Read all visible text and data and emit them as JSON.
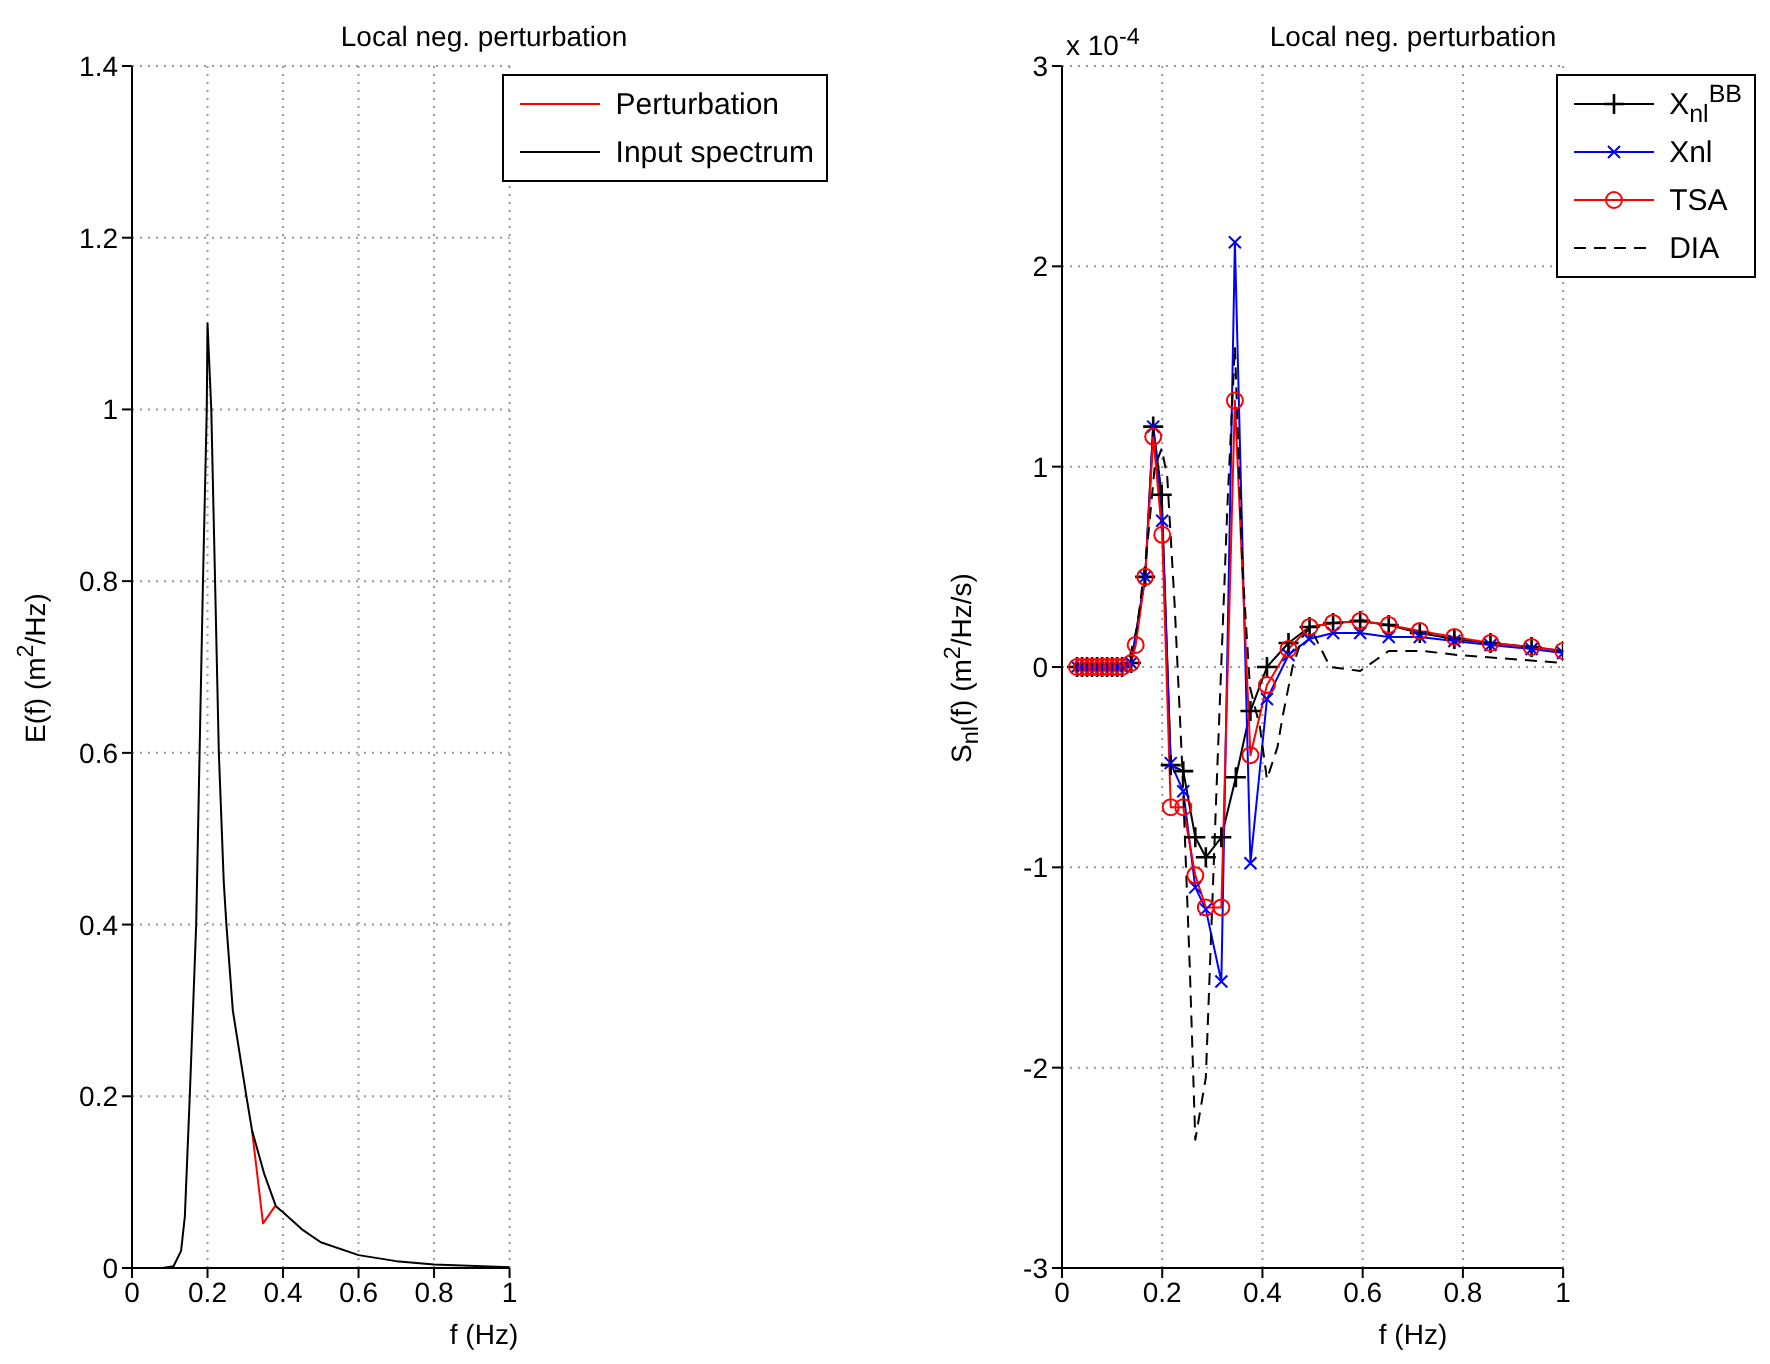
{
  "chart_data": [
    {
      "type": "line",
      "title": "Local neg. perturbation",
      "xlabel": "f (Hz)",
      "ylabel": "E(f) (m$^{2}$/Hz)",
      "xlim": [
        0,
        1
      ],
      "xticks": [
        0,
        0.2,
        0.4,
        0.6,
        0.8,
        1
      ],
      "ylim": [
        0,
        1.4
      ],
      "yticks": [
        0,
        0.2,
        0.4,
        0.6,
        0.8,
        1,
        1.2,
        1.4
      ],
      "grid": true,
      "legend": "top right",
      "series": [
        {
          "name": "Perturbation",
          "color": "#ff0000",
          "x": [
            0.318,
            0.347,
            0.379
          ],
          "values": [
            0.16,
            0.052,
            0.072
          ]
        },
        {
          "name": "Input spectrum",
          "color": "#000000",
          "x": [
            0,
            0.08,
            0.11,
            0.13,
            0.14,
            0.153,
            0.17,
            0.179,
            0.188,
            0.198,
            0.2,
            0.21,
            0.22,
            0.23,
            0.243,
            0.25,
            0.267,
            0.303,
            0.318,
            0.35,
            0.381,
            0.4,
            0.45,
            0.5,
            0.6,
            0.7,
            0.8,
            1
          ],
          "values": [
            0,
            0,
            0.002,
            0.02,
            0.06,
            0.2,
            0.4,
            0.6,
            0.8,
            1.0,
            1.1,
            1.0,
            0.8,
            0.6,
            0.45,
            0.4,
            0.3,
            0.2,
            0.16,
            0.11,
            0.072,
            0.065,
            0.045,
            0.03,
            0.015,
            0.008,
            0.004,
            0.001
          ]
        }
      ]
    },
    {
      "type": "line",
      "title": "Local neg. perturbation",
      "xlabel": "f (Hz)",
      "ylabel": "S$_{nl}$(f) (m$^{2}$/Hz/s)",
      "annotations": [
        "x 10$^{-4}$"
      ],
      "xlim": [
        0,
        1
      ],
      "xticks": [
        0,
        0.2,
        0.4,
        0.6,
        0.8,
        1
      ],
      "ylim": [
        -3,
        3
      ],
      "yticks": [
        -3,
        -2,
        -1,
        0,
        1,
        2,
        3
      ],
      "grid": true,
      "legend": "top right",
      "series": [
        {
          "name": "X$_{nl}$$^{BB}$",
          "color": "#000000",
          "marker": "plus",
          "x": [
            0.03,
            0.04,
            0.05,
            0.06,
            0.07,
            0.08,
            0.09,
            0.1,
            0.11,
            0.12,
            0.138,
            0.166,
            0.182,
            0.199,
            0.217,
            0.242,
            0.266,
            0.287,
            0.318,
            0.347,
            0.376,
            0.409,
            0.452,
            0.494,
            0.541,
            0.595,
            0.652,
            0.714,
            0.783,
            0.855,
            0.937,
            1
          ],
          "values": [
            0,
            0,
            0,
            0,
            0,
            0,
            0,
            0,
            0,
            0,
            0.02,
            0.45,
            1.2,
            0.86,
            -0.49,
            -0.52,
            -0.85,
            -0.95,
            -0.85,
            -0.55,
            -0.22,
            0,
            0.12,
            0.2,
            0.22,
            0.23,
            0.21,
            0.17,
            0.14,
            0.12,
            0.1,
            0.08
          ]
        },
        {
          "name": "Xnl",
          "color": "#0000ff",
          "marker": "cross",
          "x": [
            0.03,
            0.04,
            0.05,
            0.06,
            0.07,
            0.08,
            0.09,
            0.1,
            0.11,
            0.12,
            0.138,
            0.166,
            0.182,
            0.2,
            0.217,
            0.242,
            0.266,
            0.287,
            0.318,
            0.345,
            0.376,
            0.409,
            0.452,
            0.493,
            0.541,
            0.595,
            0.652,
            0.714,
            0.783,
            0.855,
            0.937,
            1
          ],
          "values": [
            0,
            0,
            0,
            0,
            0,
            0,
            0,
            0,
            0,
            0,
            0.02,
            0.45,
            1.2,
            0.73,
            -0.48,
            -0.62,
            -1.1,
            -1.21,
            -1.57,
            2.12,
            -0.98,
            -0.16,
            0.06,
            0.14,
            0.17,
            0.17,
            0.15,
            0.15,
            0.13,
            0.11,
            0.09,
            0.07
          ]
        },
        {
          "name": "TSA",
          "color": "#ff0000",
          "marker": "circle",
          "x": [
            0.03,
            0.04,
            0.05,
            0.06,
            0.07,
            0.08,
            0.09,
            0.1,
            0.11,
            0.12,
            0.138,
            0.147,
            0.166,
            0.182,
            0.2,
            0.217,
            0.242,
            0.266,
            0.287,
            0.318,
            0.345,
            0.376,
            0.409,
            0.452,
            0.494,
            0.541,
            0.595,
            0.652,
            0.714,
            0.783,
            0.855,
            0.937,
            1
          ],
          "values": [
            0,
            0,
            0,
            0,
            0,
            0,
            0,
            0,
            0,
            0,
            0.02,
            0.11,
            0.45,
            1.15,
            0.66,
            -0.7,
            -0.7,
            -1.04,
            -1.2,
            -1.2,
            1.33,
            -0.44,
            -0.09,
            0.09,
            0.2,
            0.22,
            0.23,
            0.21,
            0.18,
            0.15,
            0.12,
            0.1,
            0.08
          ]
        },
        {
          "name": "DIA",
          "color": "#000000",
          "line_style": "dashed",
          "x": [
            0.03,
            0.13,
            0.15,
            0.17,
            0.185,
            0.199,
            0.21,
            0.225,
            0.24,
            0.255,
            0.266,
            0.287,
            0.31,
            0.33,
            0.345,
            0.36,
            0.375,
            0.395,
            0.409,
            0.43,
            0.44,
            0.46,
            0.48,
            0.495,
            0.535,
            0.595,
            0.652,
            0.72,
            0.79,
            1
          ],
          "values": [
            0,
            0,
            0.2,
            0.6,
            1.0,
            1.09,
            0.95,
            0.3,
            -0.5,
            -1.5,
            -2.36,
            -2.05,
            -0.5,
            0.8,
            1.6,
            0.5,
            -0.1,
            -0.3,
            -0.56,
            -0.4,
            -0.25,
            0.0,
            0.15,
            0.2,
            0.0,
            -0.02,
            0.08,
            0.08,
            0.06,
            0.02
          ]
        }
      ]
    }
  ]
}
